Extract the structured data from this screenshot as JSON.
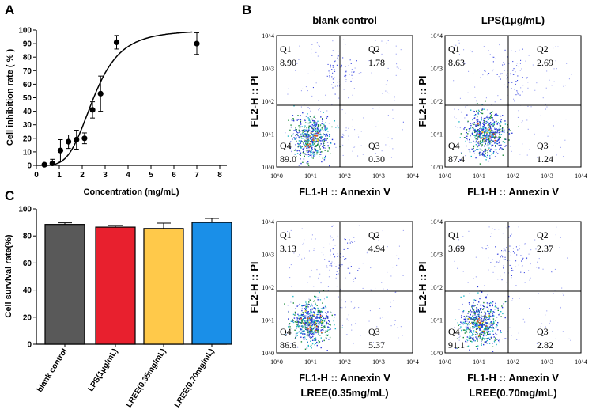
{
  "panel_labels": {
    "A": "A",
    "B": "B",
    "C": "C"
  },
  "chart_data": [
    {
      "id": "A",
      "type": "scatter",
      "title": "",
      "xlabel": "Concentration (mg/mL)",
      "ylabel": "Cell inhibition rate ( % )",
      "xlim": [
        0,
        8
      ],
      "ylim": [
        0,
        100
      ],
      "xticks": [
        0,
        1,
        2,
        3,
        4,
        5,
        6,
        7,
        8
      ],
      "yticks": [
        0,
        10,
        20,
        30,
        40,
        50,
        60,
        70,
        80,
        90,
        100
      ],
      "points": [
        {
          "x": 0.35,
          "y": 0.5,
          "err": 1
        },
        {
          "x": 0.7,
          "y": 1.5,
          "err": 3
        },
        {
          "x": 1.05,
          "y": 11,
          "err": 8
        },
        {
          "x": 1.4,
          "y": 17.5,
          "err": 5
        },
        {
          "x": 1.75,
          "y": 19,
          "err": 7
        },
        {
          "x": 2.1,
          "y": 20,
          "err": 4
        },
        {
          "x": 2.45,
          "y": 41,
          "err": 6
        },
        {
          "x": 2.8,
          "y": 53,
          "err": 13
        },
        {
          "x": 3.5,
          "y": 91,
          "err": 5
        },
        {
          "x": 7.0,
          "y": 90,
          "err": 8
        }
      ],
      "fit": {
        "model": "sigmoid",
        "bottom": 0,
        "top": 100,
        "ec50": 2.5,
        "hill": 4.2
      }
    },
    {
      "id": "C",
      "type": "bar",
      "title": "",
      "xlabel": "",
      "ylabel": "Cell survival rate(%)",
      "ylim": [
        0,
        100
      ],
      "yticks": [
        0,
        20,
        40,
        60,
        80,
        100
      ],
      "categories": [
        "blank control",
        "LPS(1μg/mL)",
        "LREE(0.35mg/mL)",
        "LREE(0.70mg/mL)"
      ],
      "values": [
        88.5,
        86.5,
        85.5,
        90
      ],
      "errors": [
        1.2,
        1.3,
        4,
        3
      ],
      "colors": [
        "#595959",
        "#e8202e",
        "#ffc94a",
        "#1a8fe8"
      ]
    },
    {
      "id": "B",
      "type": "scatter",
      "kind": "flow-cytometry",
      "xaxis_label": "FL1-H :: Annexin V",
      "yaxis_label": "FL2-H :: PI",
      "log_ticks": [
        "10^0",
        "10^1",
        "10^2",
        "10^3",
        "10^4"
      ],
      "quadrant_names": [
        "Q1",
        "Q2",
        "Q3",
        "Q4"
      ],
      "plots": [
        {
          "title": "blank control",
          "caption": "",
          "Q1": "8.90",
          "Q2": "1.78",
          "Q3": "0.30",
          "Q4": "89.0"
        },
        {
          "title": "LPS(1μg/mL)",
          "caption": "",
          "Q1": "8.63",
          "Q2": "2.69",
          "Q3": "1.24",
          "Q4": "87.4"
        },
        {
          "title": "",
          "caption": "LREE(0.35mg/mL)",
          "Q1": "3.13",
          "Q2": "4.94",
          "Q3": "5.37",
          "Q4": "86.6"
        },
        {
          "title": "",
          "caption": "LREE(0.70mg/mL)",
          "Q1": "3.69",
          "Q2": "2.37",
          "Q3": "2.82",
          "Q4": "91.1"
        }
      ]
    }
  ]
}
